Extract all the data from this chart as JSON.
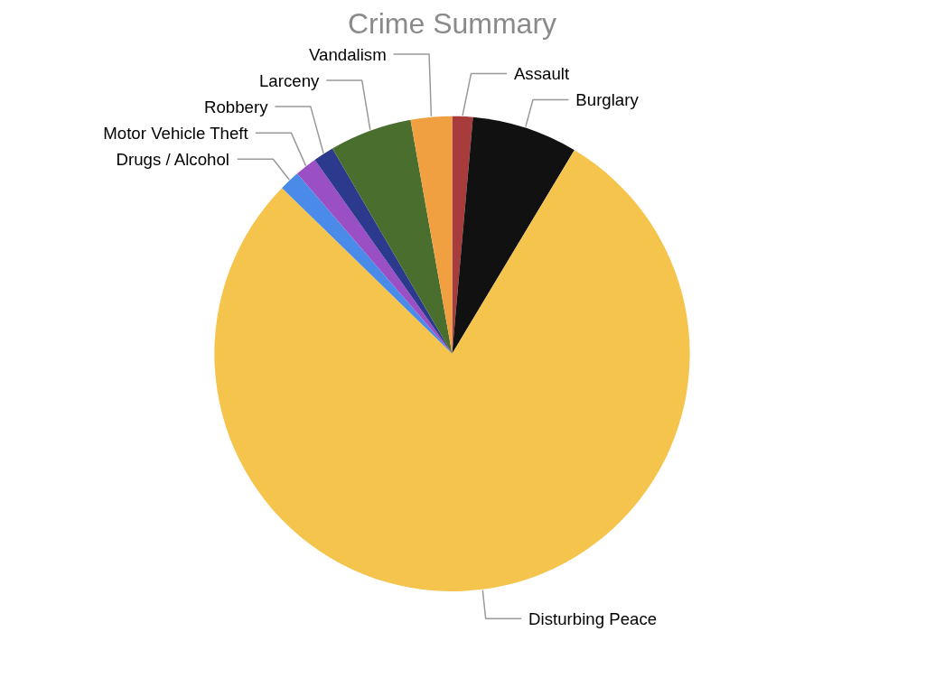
{
  "chart_data": {
    "type": "pie",
    "title": "Crime Summary",
    "categories": [
      "Assault",
      "Burglary",
      "Disturbing Peace",
      "Drugs / Alcohol",
      "Motor Vehicle Theft",
      "Robbery",
      "Larceny",
      "Vandalism"
    ],
    "values": [
      1.4,
      7.2,
      78.7,
      1.4,
      1.5,
      1.4,
      5.6,
      2.8
    ],
    "colors": [
      "#a83c3c",
      "#111111",
      "#f4c44c",
      "#4a8ae8",
      "#9b4fc4",
      "#2b3a8c",
      "#4a6e2e",
      "#f0a040"
    ]
  }
}
